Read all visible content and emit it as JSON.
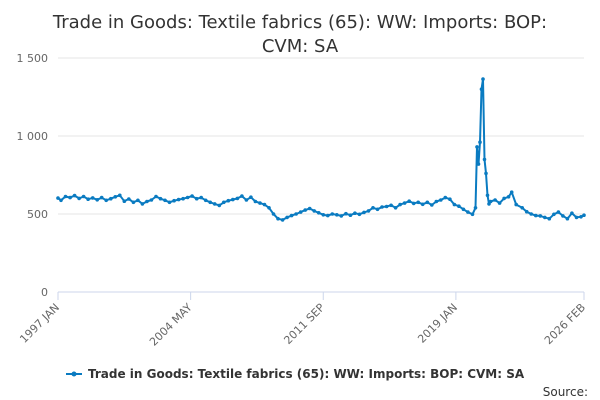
{
  "chart_data": {
    "type": "line",
    "title": "Trade in Goods: Textile fabrics (65): WW: Imports: BOP: CVM: SA",
    "title_lines": [
      "Trade in Goods: Textile fabrics (65): WW: Imports: BOP:",
      "CVM: SA"
    ],
    "xlabel": "",
    "ylabel": "",
    "x_range": [
      "1997-01",
      "2026-02"
    ],
    "ylim": [
      0,
      1500
    ],
    "y_ticks": [
      0,
      500,
      1000,
      1500
    ],
    "y_tick_labels": [
      "0",
      "500",
      "1 000",
      "1 500"
    ],
    "x_ticks": [
      "1997-01",
      "2004-05",
      "2011-09",
      "2019-01",
      "2026-02"
    ],
    "x_tick_labels": [
      "1997 JAN",
      "2004 MAY",
      "2011 SEP",
      "2019 JAN",
      "2026 FEB"
    ],
    "grid": "horizontal",
    "legend_position": "bottom",
    "series": [
      {
        "name": "Trade in Goods: Textile fabrics (65): WW: Imports: BOP: CVM: SA",
        "color": "#0a7bc1",
        "points": [
          [
            "1997-01",
            602
          ],
          [
            "1997-03",
            588
          ],
          [
            "1997-06",
            612
          ],
          [
            "1997-09",
            605
          ],
          [
            "1997-12",
            618
          ],
          [
            "1998-03",
            600
          ],
          [
            "1998-06",
            612
          ],
          [
            "1998-09",
            595
          ],
          [
            "1998-12",
            603
          ],
          [
            "1999-03",
            591
          ],
          [
            "1999-06",
            605
          ],
          [
            "1999-09",
            588
          ],
          [
            "1999-12",
            598
          ],
          [
            "2000-03",
            610
          ],
          [
            "2000-06",
            620
          ],
          [
            "2000-09",
            582
          ],
          [
            "2000-12",
            596
          ],
          [
            "2001-03",
            575
          ],
          [
            "2001-06",
            588
          ],
          [
            "2001-09",
            565
          ],
          [
            "2001-12",
            580
          ],
          [
            "2002-03",
            590
          ],
          [
            "2002-06",
            612
          ],
          [
            "2002-09",
            598
          ],
          [
            "2002-12",
            588
          ],
          [
            "2003-03",
            575
          ],
          [
            "2003-06",
            585
          ],
          [
            "2003-09",
            592
          ],
          [
            "2003-12",
            598
          ],
          [
            "2004-03",
            606
          ],
          [
            "2004-06",
            615
          ],
          [
            "2004-09",
            598
          ],
          [
            "2004-12",
            605
          ],
          [
            "2005-03",
            588
          ],
          [
            "2005-06",
            575
          ],
          [
            "2005-09",
            565
          ],
          [
            "2005-12",
            555
          ],
          [
            "2006-03",
            575
          ],
          [
            "2006-06",
            585
          ],
          [
            "2006-09",
            592
          ],
          [
            "2006-12",
            600
          ],
          [
            "2007-03",
            615
          ],
          [
            "2007-06",
            590
          ],
          [
            "2007-09",
            608
          ],
          [
            "2007-12",
            580
          ],
          [
            "2008-03",
            570
          ],
          [
            "2008-06",
            560
          ],
          [
            "2008-09",
            540
          ],
          [
            "2008-12",
            500
          ],
          [
            "2009-03",
            470
          ],
          [
            "2009-06",
            462
          ],
          [
            "2009-09",
            478
          ],
          [
            "2009-12",
            490
          ],
          [
            "2010-03",
            500
          ],
          [
            "2010-06",
            512
          ],
          [
            "2010-09",
            525
          ],
          [
            "2010-12",
            535
          ],
          [
            "2011-03",
            520
          ],
          [
            "2011-06",
            508
          ],
          [
            "2011-09",
            495
          ],
          [
            "2011-12",
            490
          ],
          [
            "2012-03",
            500
          ],
          [
            "2012-06",
            495
          ],
          [
            "2012-09",
            488
          ],
          [
            "2012-12",
            502
          ],
          [
            "2013-03",
            492
          ],
          [
            "2013-06",
            505
          ],
          [
            "2013-09",
            498
          ],
          [
            "2013-12",
            510
          ],
          [
            "2014-03",
            520
          ],
          [
            "2014-06",
            540
          ],
          [
            "2014-09",
            530
          ],
          [
            "2014-12",
            545
          ],
          [
            "2015-03",
            548
          ],
          [
            "2015-06",
            556
          ],
          [
            "2015-09",
            540
          ],
          [
            "2015-12",
            560
          ],
          [
            "2016-03",
            570
          ],
          [
            "2016-06",
            582
          ],
          [
            "2016-09",
            568
          ],
          [
            "2016-12",
            575
          ],
          [
            "2017-03",
            562
          ],
          [
            "2017-06",
            575
          ],
          [
            "2017-09",
            558
          ],
          [
            "2017-12",
            580
          ],
          [
            "2018-03",
            590
          ],
          [
            "2018-06",
            605
          ],
          [
            "2018-09",
            595
          ],
          [
            "2018-12",
            560
          ],
          [
            "2019-03",
            550
          ],
          [
            "2019-06",
            530
          ],
          [
            "2019-09",
            512
          ],
          [
            "2019-12",
            498
          ],
          [
            "2020-02",
            540
          ],
          [
            "2020-03",
            930
          ],
          [
            "2020-04",
            820
          ],
          [
            "2020-05",
            960
          ],
          [
            "2020-06",
            1300
          ],
          [
            "2020-07",
            1365
          ],
          [
            "2020-08",
            850
          ],
          [
            "2020-09",
            760
          ],
          [
            "2020-10",
            620
          ],
          [
            "2020-11",
            565
          ],
          [
            "2020-12",
            580
          ],
          [
            "2021-03",
            590
          ],
          [
            "2021-06",
            570
          ],
          [
            "2021-09",
            600
          ],
          [
            "2021-12",
            610
          ],
          [
            "2022-02",
            640
          ],
          [
            "2022-05",
            560
          ],
          [
            "2022-09",
            540
          ],
          [
            "2022-12",
            515
          ],
          [
            "2023-03",
            500
          ],
          [
            "2023-06",
            490
          ],
          [
            "2023-09",
            488
          ],
          [
            "2023-12",
            478
          ],
          [
            "2024-03",
            470
          ],
          [
            "2024-06",
            498
          ],
          [
            "2024-09",
            512
          ],
          [
            "2024-12",
            488
          ],
          [
            "2025-03",
            470
          ],
          [
            "2025-06",
            505
          ],
          [
            "2025-09",
            478
          ],
          [
            "2025-12",
            482
          ],
          [
            "2026-02",
            492
          ]
        ]
      }
    ],
    "source_label": "Source:"
  }
}
